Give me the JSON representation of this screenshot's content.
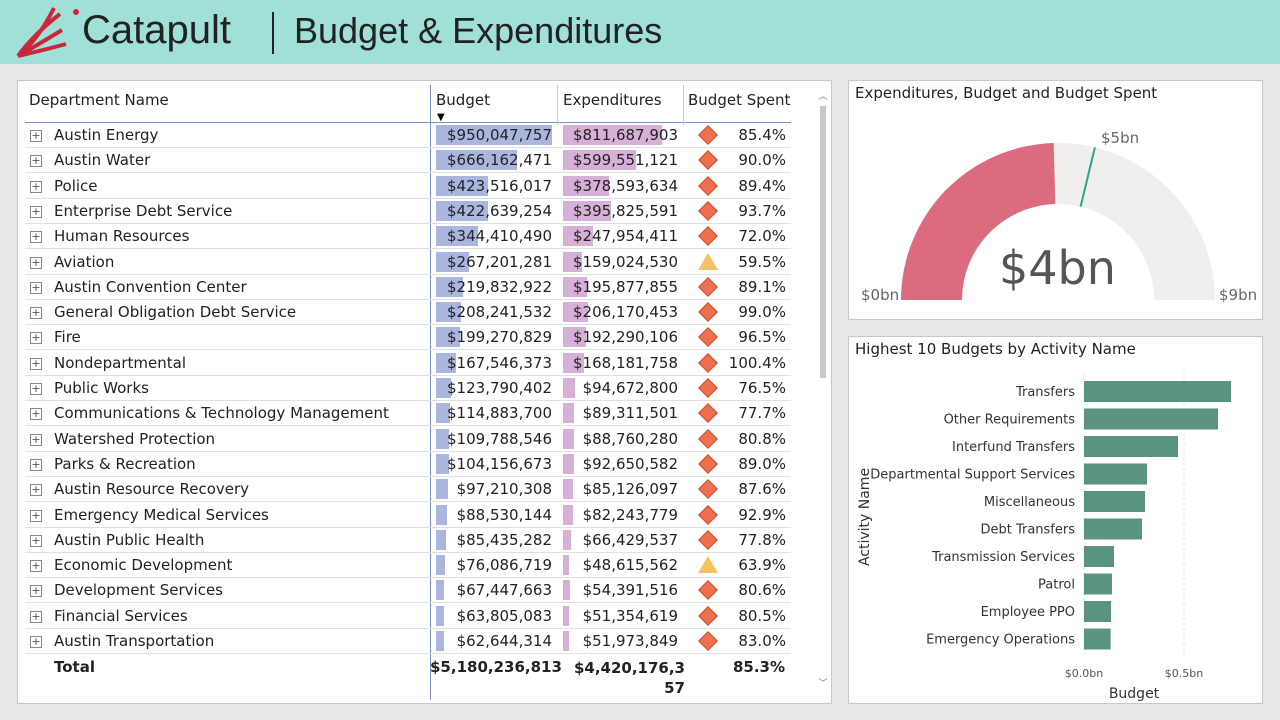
{
  "header": {
    "brand": "Catapult",
    "title": "Budget & Expenditures"
  },
  "table": {
    "columns": [
      "Department Name",
      "Budget",
      "Expenditures",
      "Budget Spent"
    ],
    "sort_indicator": "sort-descending-icon",
    "rows": [
      {
        "name": "Austin Energy",
        "budget": "$950,047,757",
        "exp": "$811,687,903",
        "spent": "85.4%",
        "b": 950047757,
        "e": 811687903,
        "icon": "diamond"
      },
      {
        "name": "Austin Water",
        "budget": "$666,162,471",
        "exp": "$599,551,121",
        "spent": "90.0%",
        "b": 666162471,
        "e": 599551121,
        "icon": "diamond"
      },
      {
        "name": "Police",
        "budget": "$423,516,017",
        "exp": "$378,593,634",
        "spent": "89.4%",
        "b": 423516017,
        "e": 378593634,
        "icon": "diamond"
      },
      {
        "name": "Enterprise Debt Service",
        "budget": "$422,639,254",
        "exp": "$395,825,591",
        "spent": "93.7%",
        "b": 422639254,
        "e": 395825591,
        "icon": "diamond"
      },
      {
        "name": "Human Resources",
        "budget": "$344,410,490",
        "exp": "$247,954,411",
        "spent": "72.0%",
        "b": 344410490,
        "e": 247954411,
        "icon": "diamond"
      },
      {
        "name": "Aviation",
        "budget": "$267,201,281",
        "exp": "$159,024,530",
        "spent": "59.5%",
        "b": 267201281,
        "e": 159024530,
        "icon": "triangle"
      },
      {
        "name": "Austin Convention Center",
        "budget": "$219,832,922",
        "exp": "$195,877,855",
        "spent": "89.1%",
        "b": 219832922,
        "e": 195877855,
        "icon": "diamond"
      },
      {
        "name": "General Obligation Debt Service",
        "budget": "$208,241,532",
        "exp": "$206,170,453",
        "spent": "99.0%",
        "b": 208241532,
        "e": 206170453,
        "icon": "diamond"
      },
      {
        "name": "Fire",
        "budget": "$199,270,829",
        "exp": "$192,290,106",
        "spent": "96.5%",
        "b": 199270829,
        "e": 192290106,
        "icon": "diamond"
      },
      {
        "name": "Nondepartmental",
        "budget": "$167,546,373",
        "exp": "$168,181,758",
        "spent": "100.4%",
        "b": 167546373,
        "e": 168181758,
        "icon": "diamond"
      },
      {
        "name": "Public Works",
        "budget": "$123,790,402",
        "exp": "$94,672,800",
        "spent": "76.5%",
        "b": 123790402,
        "e": 94672800,
        "icon": "diamond"
      },
      {
        "name": "Communications & Technology Management",
        "budget": "$114,883,700",
        "exp": "$89,311,501",
        "spent": "77.7%",
        "b": 114883700,
        "e": 89311501,
        "icon": "diamond"
      },
      {
        "name": "Watershed Protection",
        "budget": "$109,788,546",
        "exp": "$88,760,280",
        "spent": "80.8%",
        "b": 109788546,
        "e": 88760280,
        "icon": "diamond"
      },
      {
        "name": "Parks & Recreation",
        "budget": "$104,156,673",
        "exp": "$92,650,582",
        "spent": "89.0%",
        "b": 104156673,
        "e": 92650582,
        "icon": "diamond"
      },
      {
        "name": "Austin Resource Recovery",
        "budget": "$97,210,308",
        "exp": "$85,126,097",
        "spent": "87.6%",
        "b": 97210308,
        "e": 85126097,
        "icon": "diamond"
      },
      {
        "name": "Emergency Medical Services",
        "budget": "$88,530,144",
        "exp": "$82,243,779",
        "spent": "92.9%",
        "b": 88530144,
        "e": 82243779,
        "icon": "diamond"
      },
      {
        "name": "Austin Public Health",
        "budget": "$85,435,282",
        "exp": "$66,429,537",
        "spent": "77.8%",
        "b": 85435282,
        "e": 66429537,
        "icon": "diamond"
      },
      {
        "name": "Economic Development",
        "budget": "$76,086,719",
        "exp": "$48,615,562",
        "spent": "63.9%",
        "b": 76086719,
        "e": 48615562,
        "icon": "triangle"
      },
      {
        "name": "Development Services",
        "budget": "$67,447,663",
        "exp": "$54,391,516",
        "spent": "80.6%",
        "b": 67447663,
        "e": 54391516,
        "icon": "diamond"
      },
      {
        "name": "Financial Services",
        "budget": "$63,805,083",
        "exp": "$51,354,619",
        "spent": "80.5%",
        "b": 63805083,
        "e": 51354619,
        "icon": "diamond"
      },
      {
        "name": "Austin Transportation",
        "budget": "$62,644,314",
        "exp": "$51,973,849",
        "spent": "83.0%",
        "b": 62644314,
        "e": 51973849,
        "icon": "diamond"
      }
    ],
    "total": {
      "label": "Total",
      "budget": "$5,180,236,813",
      "exp": "$4,420,176,357",
      "spent": "85.3%"
    },
    "colors": {
      "budget_bar": "#aab6de",
      "exp_bar": "#d6b0d6",
      "diamond": "#f06f4f",
      "triangle": "#f5c162"
    }
  },
  "gauge": {
    "title": "Expenditures, Budget and Budget Spent",
    "value_label": "$4bn",
    "min_label": "$0bn",
    "max_label": "$9bn",
    "target_label": "$5bn",
    "value": 4.42,
    "min": 0,
    "max": 9,
    "target": 5.18,
    "colors": {
      "fill": "#dd6b7f",
      "track": "#f0efee",
      "target": "#2aa58a"
    }
  },
  "chart_data": {
    "type": "bar",
    "orientation": "horizontal",
    "title": "Highest 10 Budgets by Activity Name",
    "xlabel": "Budget",
    "ylabel": "Activity Name",
    "categories": [
      "Transfers",
      "Other Requirements",
      "Interfund Transfers",
      "Departmental Support Services",
      "Miscellaneous",
      "Debt Transfers",
      "Transmission Services",
      "Patrol",
      "Employee PPO",
      "Emergency Operations"
    ],
    "values": [
      0.735,
      0.67,
      0.47,
      0.315,
      0.305,
      0.29,
      0.15,
      0.14,
      0.135,
      0.133
    ],
    "units": "bn USD",
    "xticks": [
      "$0.0bn",
      "$0.5bn"
    ],
    "xtick_values": [
      0,
      0.5
    ],
    "grid": true,
    "color": "#5a937e"
  }
}
